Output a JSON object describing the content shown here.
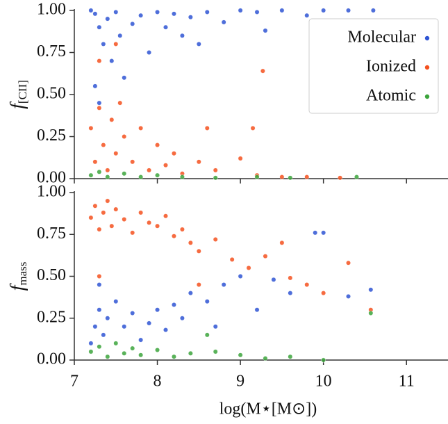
{
  "chart_data": [
    {
      "type": "scatter",
      "ylabel_main": "f",
      "ylabel_sub": "[CII]",
      "xlim": [
        7,
        11.5
      ],
      "xticks": [
        7,
        8,
        9,
        10,
        11
      ],
      "show_xtick_labels": false,
      "ylim": [
        0,
        1
      ],
      "yticks": [
        {
          "value": 0,
          "label": "0.00"
        },
        {
          "value": 0.25,
          "label": "0.25"
        },
        {
          "value": 0.5,
          "label": "0.50"
        },
        {
          "value": 0.75,
          "label": "0.75"
        },
        {
          "value": 1,
          "label": "1.00"
        }
      ],
      "legend": "upper right",
      "series": [
        {
          "name": "Molecular",
          "color": "#2f55d4",
          "x": [
            7.2,
            7.25,
            7.3,
            7.35,
            7.4,
            7.45,
            7.5,
            7.55,
            7.6,
            7.7,
            7.8,
            7.9,
            8.0,
            8.1,
            8.2,
            8.3,
            8.4,
            8.6,
            8.8,
            9.0,
            9.2,
            9.5,
            9.8,
            10.0,
            10.3,
            10.6,
            9.3,
            8.5,
            7.25,
            7.3
          ],
          "values": [
            1.0,
            0.98,
            0.9,
            0.8,
            0.95,
            0.7,
            0.99,
            0.85,
            0.6,
            0.92,
            0.97,
            0.75,
            0.99,
            0.9,
            0.98,
            0.85,
            0.96,
            0.99,
            0.93,
            1.0,
            0.99,
            1.0,
            0.97,
            1.0,
            1.0,
            1.0,
            0.88,
            0.8,
            0.55,
            0.45
          ]
        },
        {
          "name": "Ionized",
          "color": "#f4511e",
          "x": [
            7.2,
            7.25,
            7.3,
            7.35,
            7.4,
            7.45,
            7.5,
            7.55,
            7.6,
            7.7,
            7.8,
            7.9,
            8.0,
            8.1,
            8.2,
            8.3,
            8.5,
            8.7,
            9.0,
            9.2,
            9.5,
            9.8,
            7.3,
            7.5,
            9.27,
            8.6,
            9.15,
            10.2
          ],
          "values": [
            0.3,
            0.1,
            0.42,
            0.2,
            0.05,
            0.35,
            0.15,
            0.45,
            0.25,
            0.1,
            0.3,
            0.05,
            0.2,
            0.08,
            0.15,
            0.03,
            0.1,
            0.05,
            0.12,
            0.02,
            0.01,
            0.01,
            0.7,
            0.8,
            0.64,
            0.3,
            0.3,
            0.005
          ]
        },
        {
          "name": "Atomic",
          "color": "#3ca43c",
          "x": [
            7.2,
            7.3,
            7.4,
            7.6,
            7.8,
            8.0,
            8.3,
            8.7,
            9.2,
            9.6,
            10.4
          ],
          "values": [
            0.02,
            0.04,
            0.01,
            0.03,
            0.01,
            0.02,
            0.01,
            0.005,
            0.01,
            0.005,
            0.01
          ]
        }
      ]
    },
    {
      "type": "scatter",
      "ylabel_main": "f",
      "ylabel_sub": "mass",
      "xlabel": "log(M⋆[M⊙])",
      "xlim": [
        7,
        11.5
      ],
      "xticks": [
        7,
        8,
        9,
        10,
        11
      ],
      "show_xtick_labels": true,
      "ylim": [
        0,
        1
      ],
      "yticks": [
        {
          "value": 0,
          "label": "0.00"
        },
        {
          "value": 0.25,
          "label": "0.25"
        },
        {
          "value": 0.5,
          "label": "0.50"
        },
        {
          "value": 0.75,
          "label": "0.75"
        },
        {
          "value": 1,
          "label": "1.00"
        }
      ],
      "series": [
        {
          "color": "#f4511e",
          "x": [
            7.2,
            7.25,
            7.3,
            7.35,
            7.4,
            7.45,
            7.5,
            7.6,
            7.7,
            7.8,
            7.9,
            8.0,
            8.1,
            8.2,
            8.3,
            8.4,
            8.5,
            8.7,
            8.9,
            9.1,
            9.3,
            9.6,
            9.8,
            10.0,
            10.3,
            10.57,
            7.3,
            8.5,
            9.5
          ],
          "values": [
            0.85,
            0.92,
            0.78,
            0.88,
            0.95,
            0.8,
            0.9,
            0.84,
            0.76,
            0.88,
            0.82,
            0.8,
            0.86,
            0.74,
            0.78,
            0.7,
            0.65,
            0.72,
            0.6,
            0.55,
            0.62,
            0.49,
            0.45,
            0.4,
            0.58,
            0.3,
            0.5,
            0.45,
            0.7
          ]
        },
        {
          "color": "#2f55d4",
          "x": [
            7.2,
            7.25,
            7.3,
            7.35,
            7.4,
            7.5,
            7.6,
            7.7,
            7.8,
            7.9,
            8.0,
            8.1,
            8.2,
            8.3,
            8.4,
            8.6,
            8.8,
            9.0,
            9.2,
            9.4,
            9.6,
            9.9,
            10.0,
            10.3,
            10.57,
            7.3,
            8.7
          ],
          "values": [
            0.1,
            0.2,
            0.3,
            0.15,
            0.25,
            0.35,
            0.2,
            0.28,
            0.12,
            0.22,
            0.3,
            0.18,
            0.33,
            0.25,
            0.4,
            0.35,
            0.45,
            0.5,
            0.3,
            0.48,
            0.4,
            0.76,
            0.76,
            0.38,
            0.42,
            0.45,
            0.2
          ]
        },
        {
          "color": "#3ca43c",
          "x": [
            7.2,
            7.3,
            7.4,
            7.5,
            7.6,
            7.7,
            7.8,
            8.0,
            8.2,
            8.4,
            8.7,
            9.0,
            9.3,
            9.6,
            10.0,
            8.6,
            10.57
          ],
          "values": [
            0.05,
            0.08,
            0.02,
            0.1,
            0.04,
            0.07,
            0.03,
            0.06,
            0.02,
            0.04,
            0.05,
            0.03,
            0.01,
            0.02,
            0.0,
            0.15,
            0.28
          ]
        }
      ]
    }
  ]
}
